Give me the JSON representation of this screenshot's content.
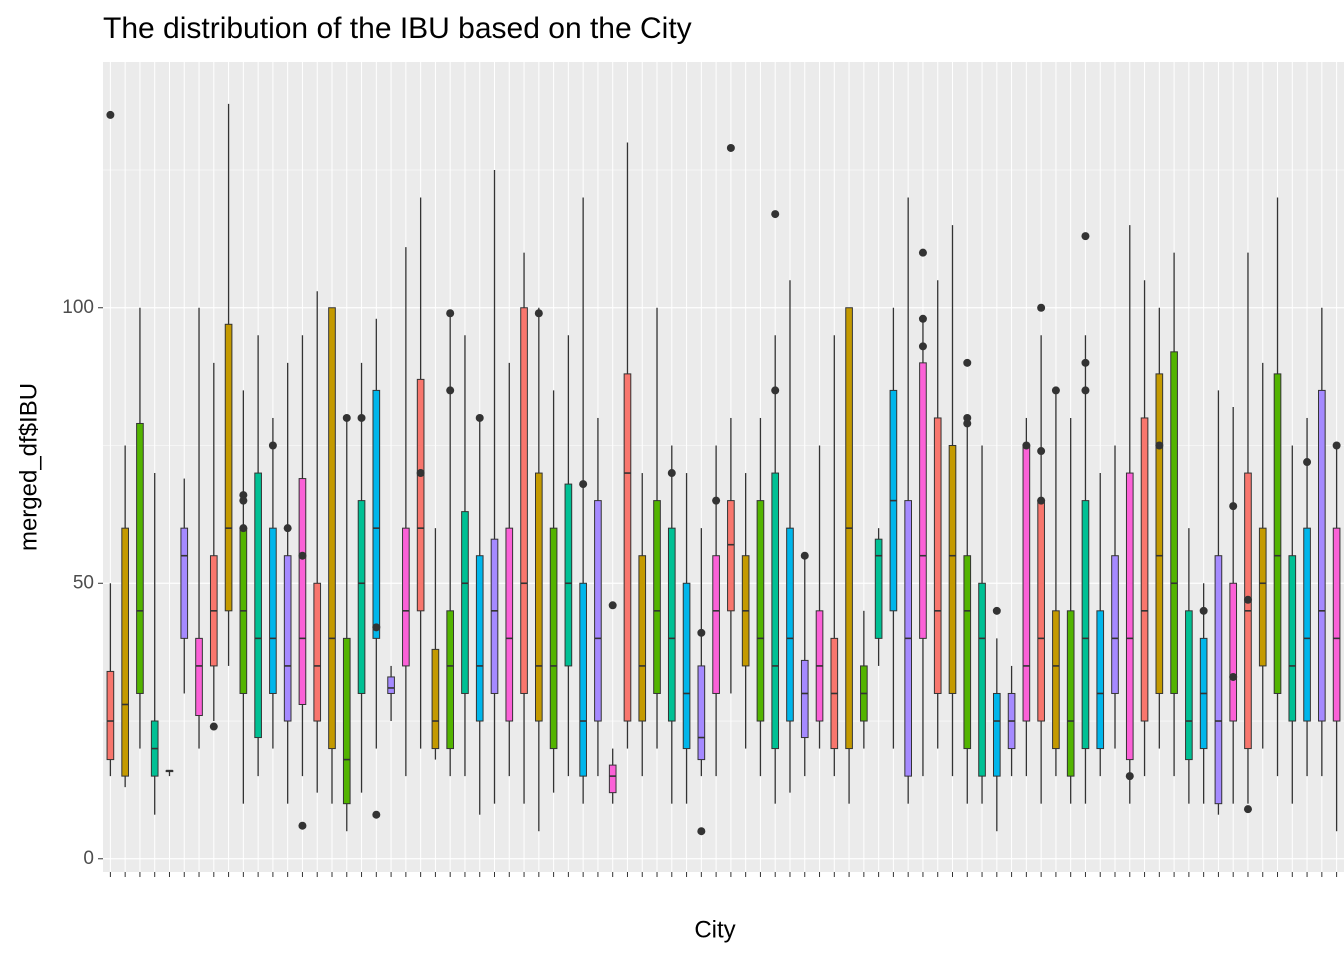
{
  "chart_data": {
    "type": "boxplot",
    "title": "The distribution of the IBU based on the City",
    "x_label": "City",
    "y_label": "merged_df$IBU",
    "ylim": [
      -2.4,
      144.6
    ],
    "yticks": [
      0,
      50,
      100
    ],
    "minor_yticks": [
      25,
      75,
      125
    ],
    "grid": true,
    "palette": [
      "#F8766D",
      "#C49A00",
      "#53B400",
      "#00C094",
      "#00B6EB",
      "#A58AFF",
      "#FB61D7"
    ],
    "boxes": [
      {
        "stats": [
          15,
          18,
          25,
          34,
          50
        ],
        "outliers": [
          135
        ]
      },
      {
        "stats": [
          13,
          15,
          28,
          60,
          75
        ],
        "outliers": []
      },
      {
        "stats": [
          20,
          30,
          45,
          79,
          100
        ],
        "outliers": []
      },
      {
        "stats": [
          8,
          15,
          20,
          25,
          70
        ],
        "outliers": []
      },
      {
        "stats": [
          15,
          16,
          16,
          16,
          16
        ],
        "outliers": []
      },
      {
        "stats": [
          30,
          40,
          55,
          60,
          69
        ],
        "outliers": []
      },
      {
        "stats": [
          20,
          26,
          35,
          40,
          100
        ],
        "outliers": []
      },
      {
        "stats": [
          25,
          35,
          45,
          55,
          90
        ],
        "outliers": [
          24
        ]
      },
      {
        "stats": [
          35,
          45,
          60,
          97,
          137
        ],
        "outliers": []
      },
      {
        "stats": [
          10,
          30,
          45,
          60,
          85
        ],
        "outliers": [
          66,
          65,
          60
        ]
      },
      {
        "stats": [
          15,
          22,
          40,
          70,
          95
        ],
        "outliers": []
      },
      {
        "stats": [
          20,
          30,
          40,
          60,
          80
        ],
        "outliers": [
          75
        ]
      },
      {
        "stats": [
          10,
          25,
          35,
          55,
          90
        ],
        "outliers": [
          60
        ]
      },
      {
        "stats": [
          15,
          28,
          40,
          69,
          95
        ],
        "outliers": [
          6,
          55
        ]
      },
      {
        "stats": [
          12,
          25,
          35,
          50,
          103
        ],
        "outliers": []
      },
      {
        "stats": [
          10,
          20,
          40,
          100,
          100
        ],
        "outliers": []
      },
      {
        "stats": [
          5,
          10,
          18,
          40,
          80
        ],
        "outliers": [
          80
        ]
      },
      {
        "stats": [
          12,
          30,
          50,
          65,
          90
        ],
        "outliers": [
          80
        ]
      },
      {
        "stats": [
          20,
          40,
          60,
          85,
          98
        ],
        "outliers": [
          42,
          8
        ]
      },
      {
        "stats": [
          25,
          30,
          31,
          33,
          35
        ],
        "outliers": []
      },
      {
        "stats": [
          15,
          35,
          45,
          60,
          111
        ],
        "outliers": []
      },
      {
        "stats": [
          20,
          45,
          60,
          87,
          120
        ],
        "outliers": [
          70
        ]
      },
      {
        "stats": [
          18,
          20,
          25,
          38,
          60
        ],
        "outliers": []
      },
      {
        "stats": [
          15,
          20,
          35,
          45,
          99
        ],
        "outliers": [
          99,
          85
        ]
      },
      {
        "stats": [
          15,
          30,
          50,
          63,
          95
        ],
        "outliers": []
      },
      {
        "stats": [
          8,
          25,
          35,
          55,
          80
        ],
        "outliers": [
          80
        ]
      },
      {
        "stats": [
          10,
          30,
          45,
          58,
          125
        ],
        "outliers": []
      },
      {
        "stats": [
          15,
          25,
          40,
          60,
          90
        ],
        "outliers": []
      },
      {
        "stats": [
          10,
          30,
          50,
          100,
          110
        ],
        "outliers": []
      },
      {
        "stats": [
          5,
          25,
          35,
          70,
          100
        ],
        "outliers": [
          99
        ]
      },
      {
        "stats": [
          12,
          20,
          35,
          60,
          85
        ],
        "outliers": []
      },
      {
        "stats": [
          15,
          35,
          50,
          68,
          95
        ],
        "outliers": []
      },
      {
        "stats": [
          10,
          15,
          25,
          50,
          120
        ],
        "outliers": [
          68
        ]
      },
      {
        "stats": [
          15,
          25,
          40,
          65,
          80
        ],
        "outliers": []
      },
      {
        "stats": [
          10,
          12,
          15,
          17,
          20
        ],
        "outliers": [
          46
        ]
      },
      {
        "stats": [
          20,
          25,
          70,
          88,
          130
        ],
        "outliers": []
      },
      {
        "stats": [
          15,
          25,
          35,
          55,
          70
        ],
        "outliers": []
      },
      {
        "stats": [
          20,
          30,
          45,
          65,
          100
        ],
        "outliers": []
      },
      {
        "stats": [
          10,
          25,
          40,
          60,
          75
        ],
        "outliers": [
          70
        ]
      },
      {
        "stats": [
          10,
          20,
          30,
          50,
          70
        ],
        "outliers": []
      },
      {
        "stats": [
          15,
          18,
          22,
          35,
          60
        ],
        "outliers": [
          41,
          5
        ]
      },
      {
        "stats": [
          15,
          30,
          45,
          55,
          75
        ],
        "outliers": [
          65
        ]
      },
      {
        "stats": [
          30,
          45,
          57,
          65,
          80
        ],
        "outliers": [
          129
        ]
      },
      {
        "stats": [
          20,
          35,
          45,
          55,
          70
        ],
        "outliers": []
      },
      {
        "stats": [
          15,
          25,
          40,
          65,
          80
        ],
        "outliers": []
      },
      {
        "stats": [
          10,
          20,
          35,
          70,
          95
        ],
        "outliers": [
          85,
          117
        ]
      },
      {
        "stats": [
          12,
          25,
          40,
          60,
          105
        ],
        "outliers": []
      },
      {
        "stats": [
          15,
          22,
          30,
          36,
          55
        ],
        "outliers": [
          55
        ]
      },
      {
        "stats": [
          20,
          25,
          35,
          45,
          75
        ],
        "outliers": []
      },
      {
        "stats": [
          15,
          20,
          30,
          40,
          95
        ],
        "outliers": []
      },
      {
        "stats": [
          10,
          20,
          60,
          100,
          100
        ],
        "outliers": []
      },
      {
        "stats": [
          20,
          25,
          30,
          35,
          45
        ],
        "outliers": []
      },
      {
        "stats": [
          35,
          40,
          55,
          58,
          60
        ],
        "outliers": []
      },
      {
        "stats": [
          20,
          45,
          65,
          85,
          100
        ],
        "outliers": []
      },
      {
        "stats": [
          10,
          15,
          40,
          65,
          120
        ],
        "outliers": []
      },
      {
        "stats": [
          15,
          40,
          55,
          90,
          98
        ],
        "outliers": [
          98,
          93,
          110
        ]
      },
      {
        "stats": [
          20,
          30,
          45,
          80,
          105
        ],
        "outliers": []
      },
      {
        "stats": [
          15,
          30,
          55,
          75,
          115
        ],
        "outliers": []
      },
      {
        "stats": [
          10,
          20,
          45,
          55,
          80
        ],
        "outliers": [
          79,
          80,
          90
        ]
      },
      {
        "stats": [
          10,
          15,
          40,
          50,
          75
        ],
        "outliers": []
      },
      {
        "stats": [
          5,
          15,
          25,
          30,
          40
        ],
        "outliers": [
          45
        ]
      },
      {
        "stats": [
          15,
          20,
          25,
          30,
          35
        ],
        "outliers": []
      },
      {
        "stats": [
          15,
          25,
          35,
          75,
          80
        ],
        "outliers": [
          75
        ]
      },
      {
        "stats": [
          10,
          25,
          40,
          65,
          95
        ],
        "outliers": [
          100,
          65,
          74
        ]
      },
      {
        "stats": [
          15,
          20,
          35,
          45,
          85
        ],
        "outliers": [
          85
        ]
      },
      {
        "stats": [
          10,
          15,
          25,
          45,
          80
        ],
        "outliers": []
      },
      {
        "stats": [
          10,
          20,
          40,
          65,
          95
        ],
        "outliers": [
          113,
          90,
          85
        ]
      },
      {
        "stats": [
          15,
          20,
          30,
          45,
          70
        ],
        "outliers": []
      },
      {
        "stats": [
          20,
          30,
          40,
          55,
          75
        ],
        "outliers": []
      },
      {
        "stats": [
          10,
          18,
          40,
          70,
          115
        ],
        "outliers": [
          15
        ]
      },
      {
        "stats": [
          15,
          25,
          45,
          80,
          105
        ],
        "outliers": []
      },
      {
        "stats": [
          20,
          30,
          55,
          88,
          100
        ],
        "outliers": [
          75
        ]
      },
      {
        "stats": [
          15,
          30,
          50,
          92,
          110
        ],
        "outliers": []
      },
      {
        "stats": [
          10,
          18,
          25,
          45,
          60
        ],
        "outliers": []
      },
      {
        "stats": [
          10,
          20,
          30,
          40,
          50
        ],
        "outliers": [
          45
        ]
      },
      {
        "stats": [
          8,
          10,
          25,
          55,
          85
        ],
        "outliers": []
      },
      {
        "stats": [
          10,
          25,
          33,
          50,
          82
        ],
        "outliers": [
          64,
          33
        ]
      },
      {
        "stats": [
          10,
          20,
          45,
          70,
          110
        ],
        "outliers": [
          9,
          47
        ]
      },
      {
        "stats": [
          20,
          35,
          50,
          60,
          90
        ],
        "outliers": []
      },
      {
        "stats": [
          15,
          30,
          55,
          88,
          120
        ],
        "outliers": []
      },
      {
        "stats": [
          10,
          25,
          35,
          55,
          75
        ],
        "outliers": []
      },
      {
        "stats": [
          15,
          25,
          40,
          60,
          80
        ],
        "outliers": [
          72
        ]
      },
      {
        "stats": [
          15,
          25,
          45,
          85,
          100
        ],
        "outliers": []
      },
      {
        "stats": [
          5,
          25,
          40,
          60,
          75
        ],
        "outliers": [
          75
        ]
      }
    ]
  }
}
